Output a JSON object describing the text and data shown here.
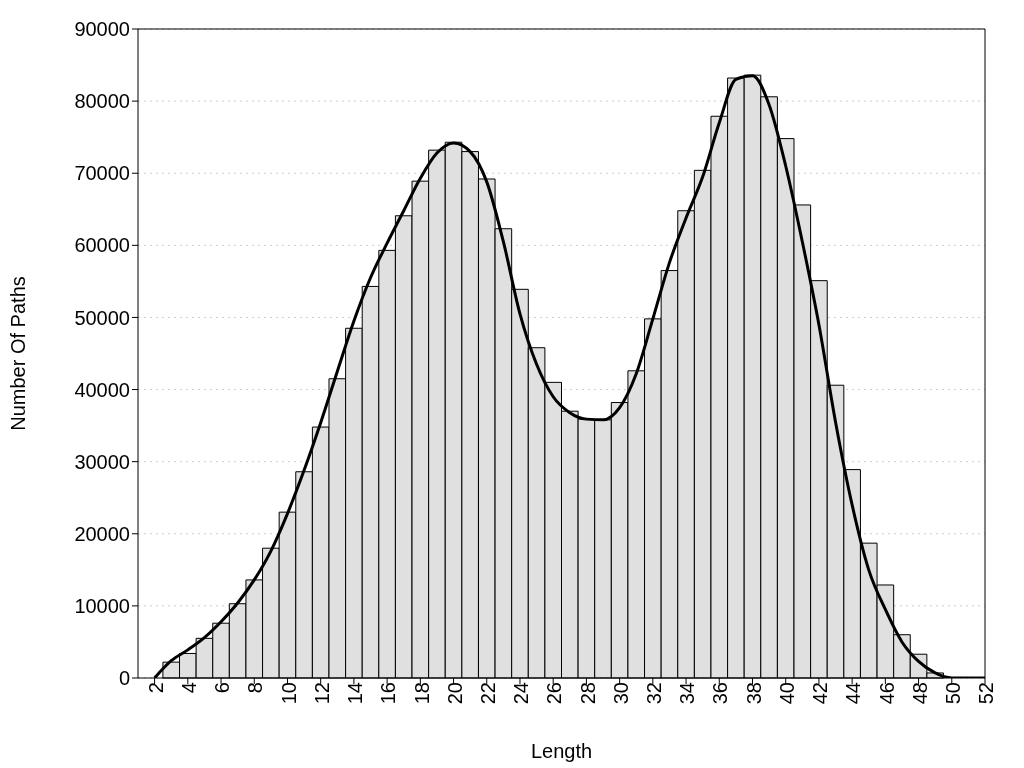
{
  "chart_data": {
    "type": "histogram",
    "xlabel": "Length",
    "ylabel": "Number Of Paths",
    "xlim": [
      1,
      52
    ],
    "xticks": [
      2,
      4,
      6,
      8,
      10,
      12,
      14,
      16,
      18,
      20,
      22,
      24,
      26,
      28,
      30,
      32,
      34,
      36,
      38,
      40,
      42,
      44,
      46,
      48,
      50,
      52
    ],
    "ylim": [
      0,
      90000
    ],
    "yticks": [
      0,
      10000,
      20000,
      30000,
      40000,
      50000,
      60000,
      70000,
      80000,
      90000
    ],
    "grid": "y",
    "color": "#e0e0e0",
    "bins": [
      2.5,
      3.5,
      4.5,
      5.5,
      6.5,
      7.5,
      8.5,
      9.5,
      10.5,
      11.5,
      12.5,
      13.5,
      14.5,
      15.5,
      16.5,
      17.5,
      18.5,
      19.5,
      20.5,
      21.5,
      22.5,
      23.5,
      24.5,
      25.5,
      26.5,
      27.5,
      28.5,
      29.5,
      30.5,
      31.5,
      32.5,
      33.5,
      34.5,
      35.5,
      36.5,
      37.5,
      38.5,
      39.5,
      40.5,
      41.5,
      42.5,
      43.5,
      44.5,
      45.5,
      46.5,
      47.5,
      48.5,
      49.5
    ],
    "values": [
      2200,
      3400,
      5500,
      7600,
      10300,
      13600,
      18000,
      23000,
      28600,
      34800,
      41500,
      48500,
      54300,
      59300,
      64100,
      68900,
      73200,
      74300,
      73000,
      69200,
      62300,
      53900,
      45800,
      41000,
      37000,
      35900,
      35800,
      38200,
      42600,
      49800,
      56500,
      64800,
      70400,
      77900,
      83200,
      83600,
      80600,
      74800,
      65600,
      55100,
      40600,
      28900,
      18700,
      12900,
      6000,
      3300,
      700
    ],
    "series": [
      {
        "type": "line",
        "color": "#000000",
        "x": [
          2,
          3,
          4,
          5,
          6,
          7,
          8,
          9,
          10,
          11,
          12,
          13,
          14,
          15,
          16,
          17,
          18,
          19,
          20,
          21,
          22,
          23,
          24,
          25,
          26,
          27,
          28,
          29,
          30,
          31,
          32,
          33,
          34,
          35,
          36,
          37,
          38,
          39,
          40,
          41,
          42,
          43,
          44,
          45,
          46,
          47,
          48,
          49,
          50,
          51,
          52
        ],
        "values": [
          0,
          2400,
          3900,
          5600,
          7800,
          10400,
          13600,
          17600,
          22800,
          28800,
          35400,
          42500,
          49500,
          55500,
          60300,
          64800,
          69300,
          72800,
          74200,
          73000,
          68800,
          60500,
          50500,
          43500,
          39000,
          36800,
          35900,
          35800,
          37500,
          42200,
          49800,
          57600,
          63800,
          69500,
          77000,
          83000,
          83500,
          79500,
          71000,
          60500,
          49000,
          35500,
          24000,
          15000,
          9500,
          5000,
          2300,
          700,
          0,
          0,
          0
        ]
      }
    ]
  }
}
